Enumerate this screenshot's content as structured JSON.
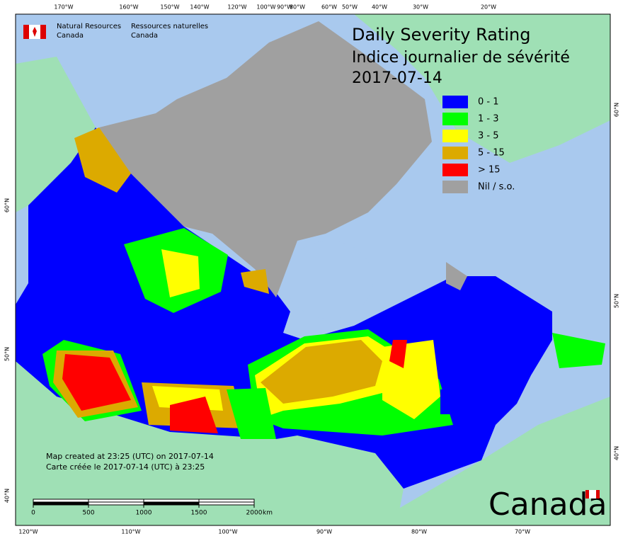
{
  "header": {
    "agency_en": [
      "Natural Resources",
      "Canada"
    ],
    "agency_fr": [
      "Ressources naturelles",
      "Canada"
    ],
    "title": [
      "Daily Severity Rating",
      "Indice journalier de sévérité",
      "2017-07-14"
    ]
  },
  "legend": [
    {
      "label": "0 - 1",
      "color": "#0000ff"
    },
    {
      "label": "1 - 3",
      "color": "#00ff00"
    },
    {
      "label": "3 - 5",
      "color": "#ffff00"
    },
    {
      "label": "5 - 15",
      "color": "#dcaa00"
    },
    {
      "label": "> 15",
      "color": "#ff0000"
    },
    {
      "label": "Nil / s.o.",
      "color": "#a0a0a0"
    }
  ],
  "graticule": {
    "top": [
      "170°W",
      "160°W",
      "150°W",
      "140°W",
      "120°W",
      "100°W",
      "90°W",
      "80°W",
      "60°W",
      "50°W",
      "40°W",
      "30°W",
      "20°W"
    ],
    "bottom": [
      "120°W",
      "110°W",
      "100°W",
      "90°W",
      "80°W",
      "70°W"
    ],
    "left": [
      "60°N",
      "50°N",
      "40°N"
    ],
    "right": [
      "60°N",
      "50°N",
      "40°N"
    ]
  },
  "scale": {
    "ticks": [
      0,
      500,
      1000,
      1500,
      2000
    ],
    "unit": "km"
  },
  "notes": [
    "Map created at 23:25 (UTC) on 2017-07-14",
    "Carte créée le 2017-07-14 (UTC) à 23:25"
  ],
  "wordmark": "Canada"
}
